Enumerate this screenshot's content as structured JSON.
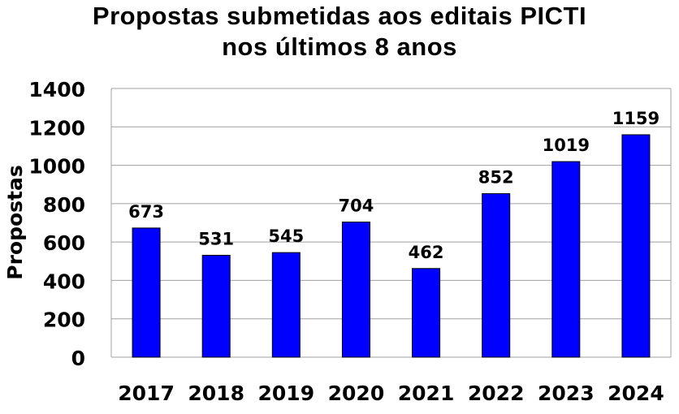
{
  "chart_data": {
    "type": "bar",
    "title_lines": [
      "Propostas submetidas aos editais PICTI",
      "nos últimos 8 anos"
    ],
    "ylabel": "Propostas",
    "xlabel": "",
    "categories": [
      "2017",
      "2018",
      "2019",
      "2020",
      "2021",
      "2022",
      "2023",
      "2024"
    ],
    "values": [
      673,
      531,
      545,
      704,
      462,
      852,
      1019,
      1159
    ],
    "data_labels": [
      "673",
      "531",
      "545",
      "704",
      "462",
      "852",
      "1019",
      "1159"
    ],
    "ylim": [
      0,
      1400
    ],
    "yticks": [
      0,
      200,
      400,
      600,
      800,
      1000,
      1200,
      1400
    ],
    "grid": true,
    "legend": "none",
    "bar_color": "#0000FF",
    "bar_stroke": "#000000",
    "grid_color": "#A0A0A0"
  }
}
